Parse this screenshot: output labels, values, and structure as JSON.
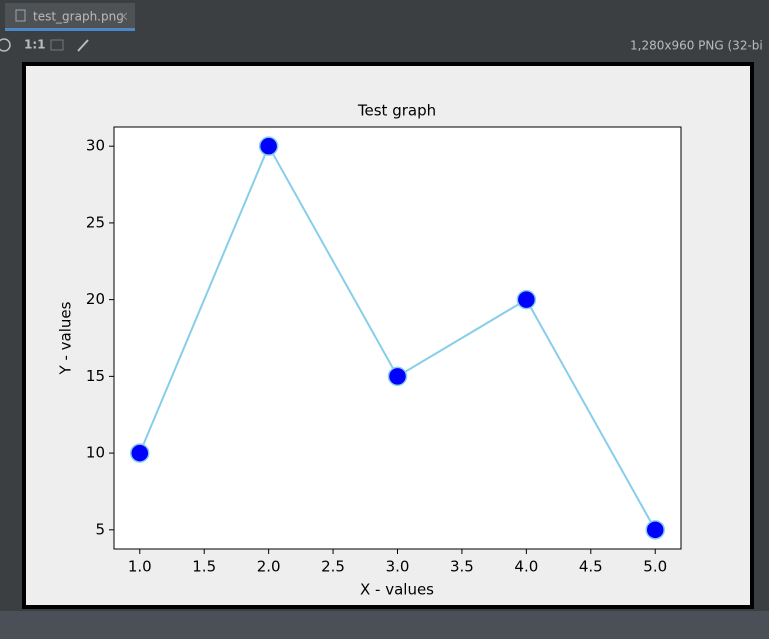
{
  "tab": {
    "label": "test_graph.png"
  },
  "toolbar": {
    "zoom": "1:1",
    "info": "1,280x960 PNG (32-bi"
  },
  "chart_data": {
    "type": "line",
    "title": "Test graph",
    "x_label": "X - values",
    "y_label": "Y - values",
    "x": [
      1,
      2,
      3,
      4,
      5
    ],
    "values": [
      10,
      30,
      15,
      20,
      5
    ],
    "line_color": "#87ceeb",
    "marker_color": "#0000ff",
    "xlim": [
      0.8,
      5.2
    ],
    "ylim": [
      3.75,
      31.25
    ],
    "xticks": [
      {
        "value": 1,
        "label": "1.0"
      },
      {
        "value": 1.5,
        "label": "1.5"
      },
      {
        "value": 2,
        "label": "2.0"
      },
      {
        "value": 2.5,
        "label": "2.5"
      },
      {
        "value": 3,
        "label": "3.0"
      },
      {
        "value": 3.5,
        "label": "3.5"
      },
      {
        "value": 4,
        "label": "4.0"
      },
      {
        "value": 4.5,
        "label": "4.5"
      },
      {
        "value": 5,
        "label": "5.0"
      }
    ],
    "yticks": [
      5,
      10,
      15,
      20,
      25,
      30
    ]
  }
}
